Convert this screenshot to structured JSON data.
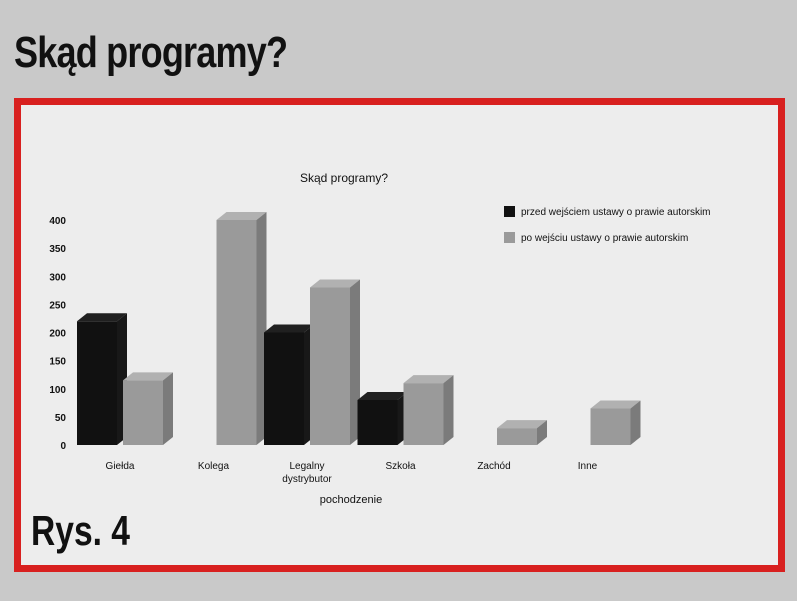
{
  "page": {
    "headline": "Skąd programy?",
    "figure_label": "Rys. 4"
  },
  "colors": {
    "frame": "#d8201f",
    "series_before": "#111111",
    "series_after": "#9a9a9a"
  },
  "chart_data": {
    "type": "bar",
    "title": "Skąd programy?",
    "xlabel": "pochodzenie",
    "ylabel": "",
    "ylim": [
      0,
      400
    ],
    "yticks": [
      0,
      50,
      100,
      150,
      200,
      250,
      300,
      350,
      400
    ],
    "categories": [
      "Giełda",
      "Kolega",
      "Legalny dystrybutor",
      "Szkoła",
      "Zachód",
      "Inne"
    ],
    "series": [
      {
        "name": "przed wejściem ustawy o prawie autorskim",
        "values": [
          220,
          0,
          200,
          80,
          0,
          0
        ]
      },
      {
        "name": "po wejściu ustawy o prawie autorskim",
        "values": [
          115,
          400,
          280,
          110,
          30,
          65
        ]
      }
    ],
    "grid": false,
    "legend": "top-right",
    "three_d": true
  }
}
